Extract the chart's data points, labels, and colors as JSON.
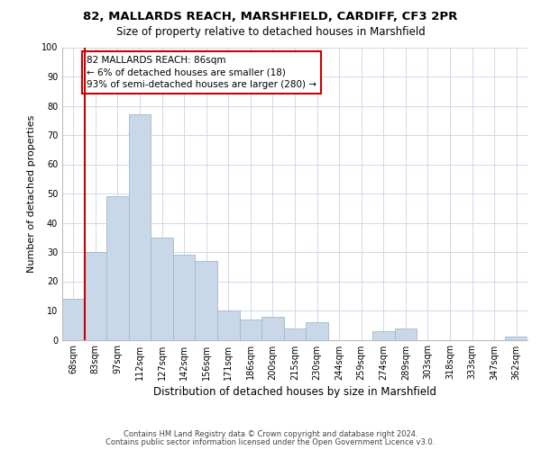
{
  "title1": "82, MALLARDS REACH, MARSHFIELD, CARDIFF, CF3 2PR",
  "title2": "Size of property relative to detached houses in Marshfield",
  "xlabel": "Distribution of detached houses by size in Marshfield",
  "ylabel": "Number of detached properties",
  "bin_labels": [
    "68sqm",
    "83sqm",
    "97sqm",
    "112sqm",
    "127sqm",
    "142sqm",
    "156sqm",
    "171sqm",
    "186sqm",
    "200sqm",
    "215sqm",
    "230sqm",
    "244sqm",
    "259sqm",
    "274sqm",
    "289sqm",
    "303sqm",
    "318sqm",
    "333sqm",
    "347sqm",
    "362sqm"
  ],
  "bar_heights": [
    14,
    30,
    49,
    77,
    35,
    29,
    27,
    10,
    7,
    8,
    4,
    6,
    0,
    0,
    3,
    4,
    0,
    0,
    0,
    0,
    1
  ],
  "bar_color": "#c8d8e8",
  "bar_edgecolor": "#a0b8cc",
  "vline_x_index": 1,
  "vline_color": "#cc0000",
  "annotation_line1": "82 MALLARDS REACH: 86sqm",
  "annotation_line2": "← 6% of detached houses are smaller (18)",
  "annotation_line3": "93% of semi-detached houses are larger (280) →",
  "annotation_box_edgecolor": "#cc0000",
  "ylim": [
    0,
    100
  ],
  "yticks": [
    0,
    10,
    20,
    30,
    40,
    50,
    60,
    70,
    80,
    90,
    100
  ],
  "footer1": "Contains HM Land Registry data © Crown copyright and database right 2024.",
  "footer2": "Contains public sector information licensed under the Open Government Licence v3.0.",
  "bg_color": "#ffffff",
  "grid_color": "#d0d8e8",
  "title1_fontsize": 9.5,
  "title2_fontsize": 8.5,
  "ylabel_fontsize": 8,
  "xlabel_fontsize": 8.5,
  "tick_fontsize": 7,
  "annotation_fontsize": 7.5,
  "footer_fontsize": 6
}
